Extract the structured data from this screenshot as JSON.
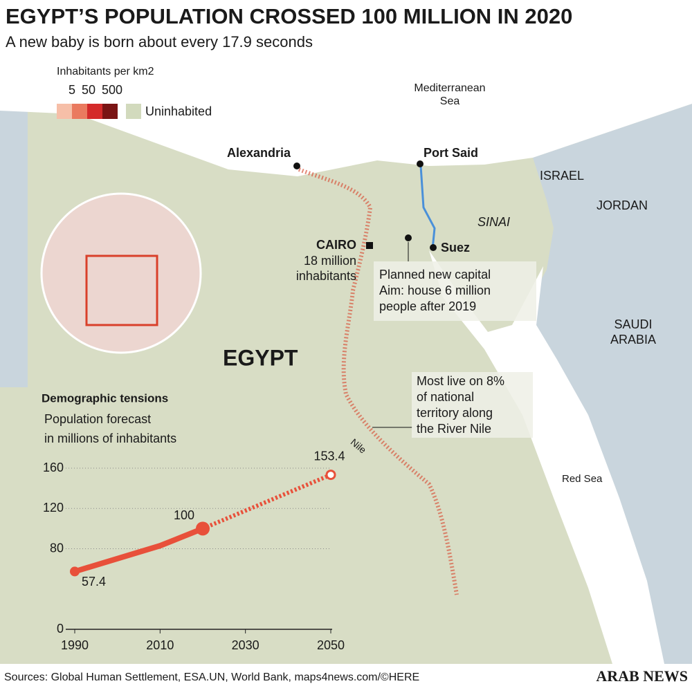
{
  "title": "EGYPT’S POPULATION CROSSED 100 MILLION IN 2020",
  "subtitle": "A new baby is born about every 17.9 seconds",
  "legend": {
    "title": "Inhabitants per km2",
    "ticks": [
      "5",
      "50",
      "500"
    ],
    "uninhabited": "Uninhabited"
  },
  "map_labels": {
    "mediterranean": [
      "Mediterranean",
      "Sea"
    ],
    "alexandria": "Alexandria",
    "port_said": "Port Said",
    "israel": "ISRAEL",
    "jordan": "JORDAN",
    "sinai": "SINAI",
    "cairo": "CAIRO",
    "cairo_note": [
      "18 million",
      "inhabitants"
    ],
    "suez": "Suez",
    "capital_note": [
      "Planned new capital",
      "Aim: house 6 million",
      "people after 2019"
    ],
    "saudi": [
      "SAUDI",
      "ARABIA"
    ],
    "egypt": "EGYPT",
    "nile_note": [
      "Most live on 8%",
      "of national",
      "territory along",
      "the River Nile"
    ],
    "nile": "Nile",
    "red_sea": "Red Sea"
  },
  "chart_data": {
    "type": "line",
    "title": "Demographic tensions",
    "subtitle": [
      "Population forecast",
      "in millions of inhabitants"
    ],
    "x": [
      1990,
      2010,
      2020,
      2050
    ],
    "series": [
      {
        "color": "#e8503a",
        "values": [
          57.4,
          83,
          100,
          null
        ]
      },
      {
        "color": "#e8503a",
        "dashed": true,
        "values": [
          null,
          null,
          100,
          153.4
        ]
      }
    ],
    "xlim": [
      1990,
      2050
    ],
    "xticks": [
      1990,
      2010,
      2030,
      2050
    ],
    "ylim": [
      0,
      160
    ],
    "yticks": [
      0,
      80,
      120,
      160
    ],
    "grid": true
  },
  "footer": {
    "sources": "Sources: Global Human Settlement,  ESA.UN,  World Bank, maps4news.com/©HERE",
    "brand": "ARAB NEWS"
  }
}
